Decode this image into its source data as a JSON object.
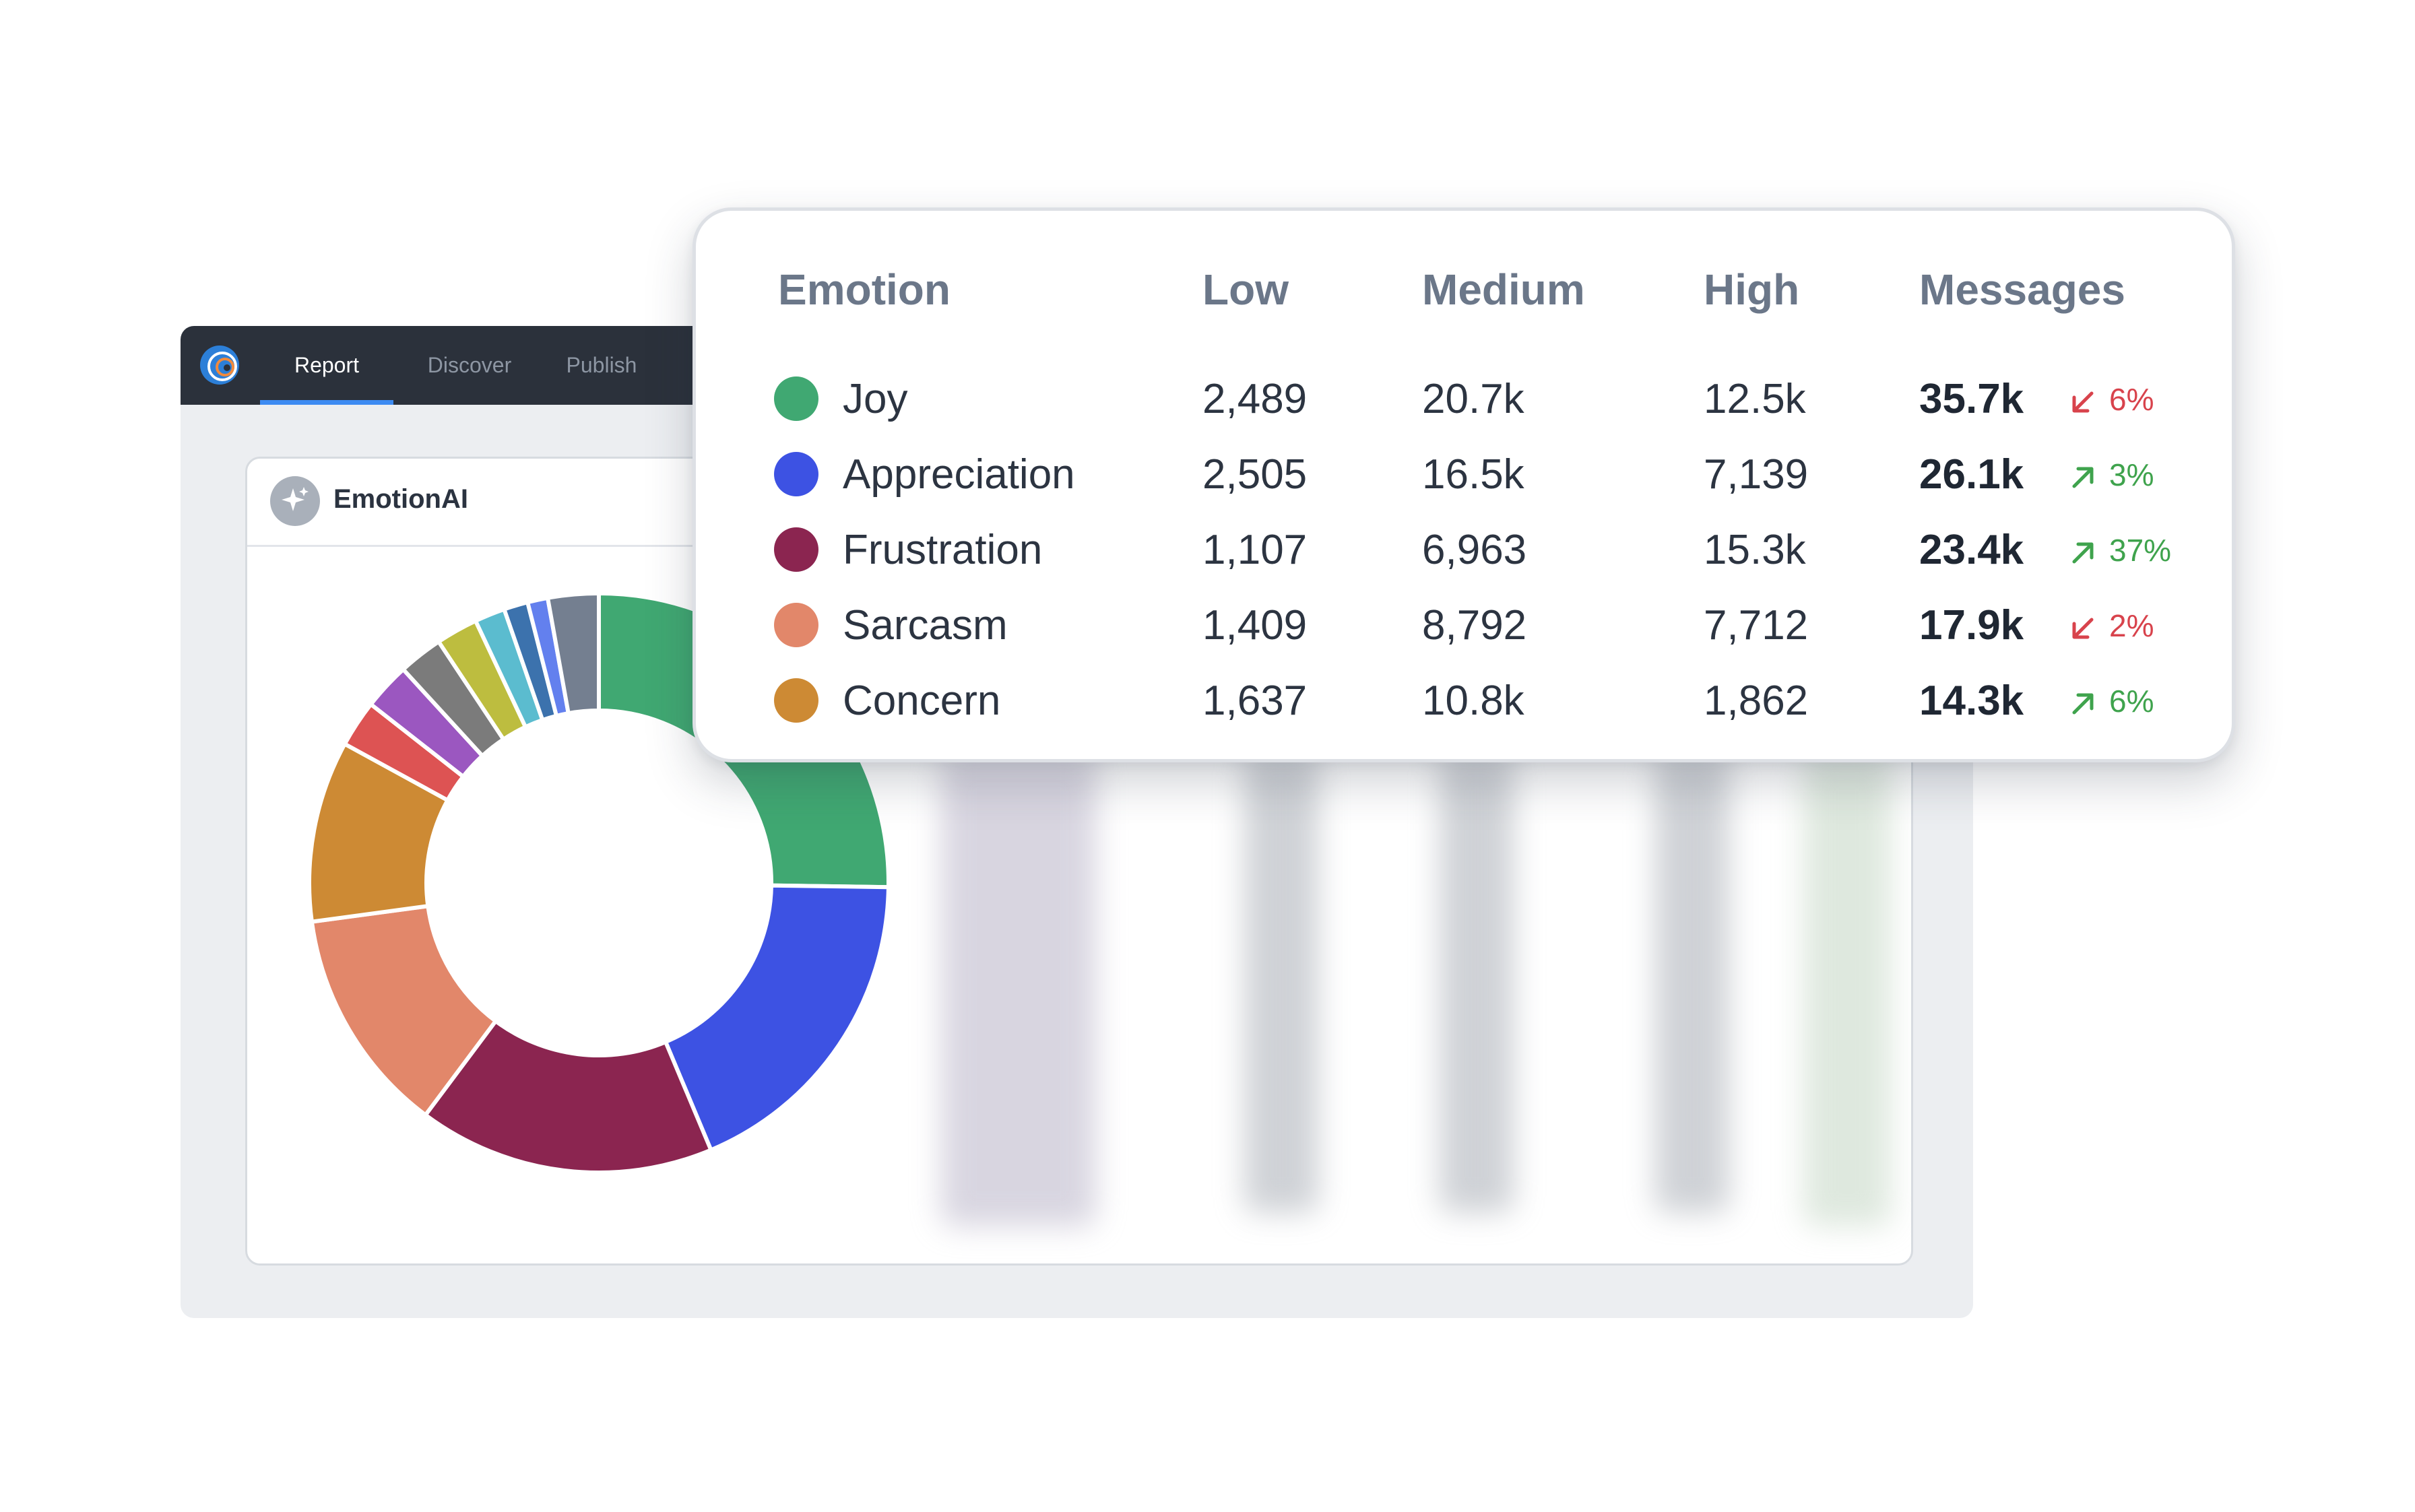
{
  "app": {
    "tabs": [
      {
        "label": "Report",
        "active": true
      },
      {
        "label": "Discover",
        "active": false
      },
      {
        "label": "Publish",
        "active": false
      }
    ],
    "panel_title": "EmotionAI"
  },
  "colors": {
    "accent": "#3d8bf2",
    "trend_up": "#3fa34d",
    "trend_down": "#d8434c"
  },
  "chart_data": {
    "type": "pie",
    "donut": true,
    "slices": [
      {
        "label": "Joy",
        "value": 35.7,
        "color": "#40a872"
      },
      {
        "label": "Appreciation",
        "value": 26.1,
        "color": "#3d52e3"
      },
      {
        "label": "Frustration",
        "value": 23.4,
        "color": "#8b2550"
      },
      {
        "label": "Sarcasm",
        "value": 17.9,
        "color": "#e2876a"
      },
      {
        "label": "Concern",
        "value": 14.3,
        "color": "#cd8a34"
      },
      {
        "label": "",
        "value": 3.7,
        "color": "#dd5353"
      },
      {
        "label": "",
        "value": 3.7,
        "color": "#9b57c0"
      },
      {
        "label": "",
        "value": 3.5,
        "color": "#7b7b7b"
      },
      {
        "label": "",
        "value": 3.3,
        "color": "#bdbd3f"
      },
      {
        "label": "",
        "value": 2.4,
        "color": "#5bbccf"
      },
      {
        "label": "",
        "value": 1.9,
        "color": "#3c72ad"
      },
      {
        "label": "",
        "value": 1.6,
        "color": "#6380ee"
      },
      {
        "label": "",
        "value": 4.0,
        "color": "#747f90"
      }
    ]
  },
  "table": {
    "headers": [
      "Emotion",
      "Low",
      "Medium",
      "High",
      "Messages"
    ],
    "rows": [
      {
        "emotion": "Joy",
        "color": "#40a872",
        "low": "2,489",
        "medium": "20.7k",
        "high": "12.5k",
        "messages": "35.7k",
        "trend": "down",
        "change": "6%"
      },
      {
        "emotion": "Appreciation",
        "color": "#3d52e3",
        "low": "2,505",
        "medium": "16.5k",
        "high": "7,139",
        "messages": "26.1k",
        "trend": "up",
        "change": "3%"
      },
      {
        "emotion": "Frustration",
        "color": "#8b2550",
        "low": "1,107",
        "medium": "6,963",
        "high": "15.3k",
        "messages": "23.4k",
        "trend": "up",
        "change": "37%"
      },
      {
        "emotion": "Sarcasm",
        "color": "#e2876a",
        "low": "1,409",
        "medium": "8,792",
        "high": "7,712",
        "messages": "17.9k",
        "trend": "down",
        "change": "2%"
      },
      {
        "emotion": "Concern",
        "color": "#cd8a34",
        "low": "1,637",
        "medium": "10.8k",
        "high": "1,862",
        "messages": "14.3k",
        "trend": "up",
        "change": "6%"
      }
    ]
  }
}
